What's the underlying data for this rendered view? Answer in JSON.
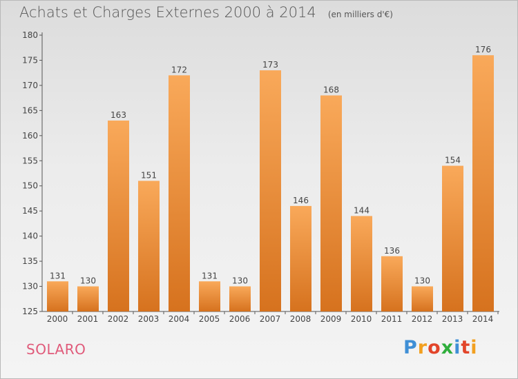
{
  "header": {
    "title": "Achats et Charges Externes 2000 à 2014",
    "subtitle": "(en milliers d'€)"
  },
  "commune": "SOLARO",
  "logo": {
    "text": "Proxiti"
  },
  "colors": {
    "bar_light": "#f9a95a",
    "bar_dark": "#d6721e",
    "axis": "#555555",
    "commune_text": "#e05a7a"
  },
  "chart_data": {
    "type": "bar",
    "title": "Achats et Charges Externes 2000 à 2014",
    "subtitle": "(en milliers d'€)",
    "xlabel": "",
    "ylabel": "",
    "categories": [
      "2000",
      "2001",
      "2002",
      "2003",
      "2004",
      "2005",
      "2006",
      "2007",
      "2008",
      "2009",
      "2010",
      "2011",
      "2012",
      "2013",
      "2014"
    ],
    "values": [
      131,
      130,
      163,
      151,
      172,
      131,
      130,
      173,
      146,
      168,
      144,
      136,
      130,
      154,
      176
    ],
    "ylim": [
      125,
      180
    ],
    "yticks": [
      125,
      130,
      135,
      140,
      145,
      150,
      155,
      160,
      165,
      170,
      175,
      180
    ],
    "grid": false,
    "legend": "none",
    "data_labels": true
  }
}
